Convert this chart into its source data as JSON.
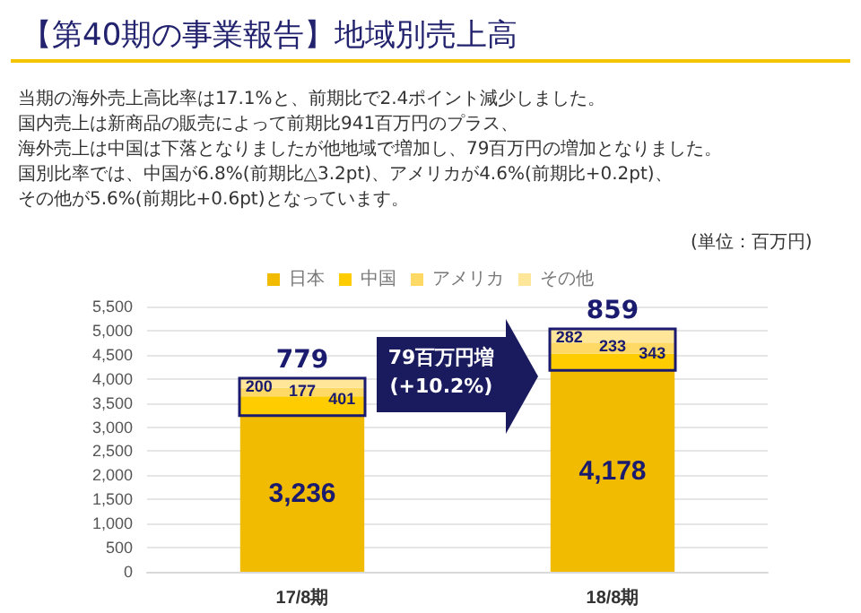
{
  "chart_data": {
    "type": "bar",
    "stacked": true,
    "title": "【第40期の事業報告】地域別売上高",
    "annotations": [
      "当期の海外売上高比率は17.1%と、前期比で2.4ポイント減少しました。",
      "国内売上は新商品の販売によって前期比941百万円のプラス、",
      "海外売上は中国は下落となりましたが他地域で増加し、79百万円の増加となりました。",
      "国別比率では、中国が6.8%(前期比△3.2pt)、アメリカが4.6%(前期比+0.2pt)、",
      "その他が5.6%(前期比+0.6pt)となっています。",
      "(単位：百万円)",
      "79百万円増",
      "(+10.2%)",
      {
        "text": "779",
        "x": "17/8期",
        "y": 4014
      },
      {
        "text": "859",
        "x": "18/8期",
        "y": 5036
      }
    ],
    "categories": [
      "17/8期",
      "18/8期"
    ],
    "series": [
      {
        "name": "日本",
        "color": "#f0bb00",
        "values": [
          3236,
          4178
        ],
        "value_labels": [
          "3,236",
          "4,178"
        ]
      },
      {
        "name": "中国",
        "color": "#ffcc00",
        "values": [
          401,
          343
        ]
      },
      {
        "name": "アメリカ",
        "color": "#ffd966",
        "values": [
          177,
          233
        ]
      },
      {
        "name": "その他",
        "color": "#ffe699",
        "values": [
          200,
          282
        ]
      }
    ],
    "data_labels": true,
    "ylim": [
      0,
      5500
    ],
    "yticks": [
      0,
      500,
      {
        "value": 1000,
        "label": "1,000"
      },
      {
        "value": 1500,
        "label": "1,500"
      },
      {
        "value": 2000,
        "label": "2,000"
      },
      {
        "value": 2500,
        "label": "2,500"
      },
      {
        "value": 3000,
        "label": "3,000"
      },
      {
        "value": 3500,
        "label": "3,500"
      },
      {
        "value": 4000,
        "label": "4,000"
      },
      {
        "value": 4500,
        "label": "4,500"
      },
      {
        "value": 5000,
        "label": "5,000"
      },
      {
        "value": 5500,
        "label": "5,500"
      }
    ],
    "grid": "y",
    "legend": "top"
  }
}
